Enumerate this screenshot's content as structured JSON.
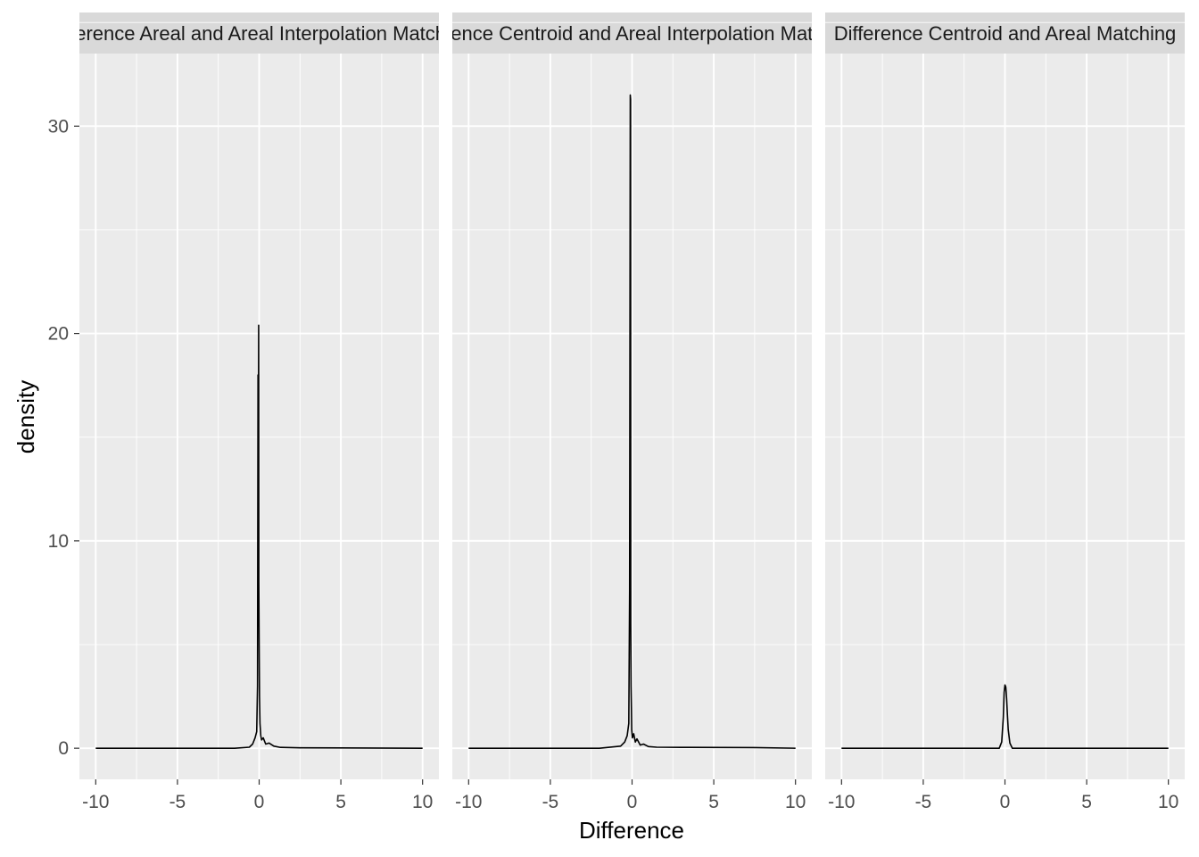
{
  "chart_data": {
    "type": "line",
    "subtype": "density (faceted)",
    "xlabel": "Difference",
    "ylabel": "density",
    "xlim": [
      -10,
      10
    ],
    "ylim": [
      -1.5,
      33.5
    ],
    "x_ticks": [
      "-10",
      "-5",
      "0",
      "5",
      "10"
    ],
    "y_ticks": [
      "0",
      "10",
      "20",
      "30"
    ],
    "grid": true,
    "colors": {
      "panel_bg": "#ebebeb",
      "strip_bg": "#d9d9d9",
      "grid": "#ffffff",
      "line": "#000000"
    },
    "panels": [
      {
        "strip_label": "Difference Areal and Areal Interpolation Matching",
        "x": [
          -10,
          -1.5,
          -0.6,
          -0.4,
          -0.25,
          -0.15,
          -0.1,
          -0.07,
          -0.05,
          -0.03,
          -0.02,
          0,
          0.02,
          0.05,
          0.1,
          0.15,
          0.25,
          0.4,
          0.6,
          0.9,
          1.3,
          2.5,
          10
        ],
        "y": [
          0,
          0,
          0.05,
          0.2,
          0.5,
          0.8,
          3,
          18,
          12,
          20.4,
          8,
          5,
          2.5,
          1.2,
          0.6,
          0.4,
          0.5,
          0.2,
          0.25,
          0.1,
          0.04,
          0.02,
          0
        ]
      },
      {
        "strip_label": "Difference Centroid and Areal Interpolation Matching",
        "x": [
          -10,
          -2,
          -0.7,
          -0.45,
          -0.3,
          -0.2,
          -0.15,
          -0.11,
          -0.09,
          -0.08,
          -0.06,
          -0.04,
          -0.02,
          0.02,
          0.1,
          0.2,
          0.3,
          0.5,
          0.7,
          1,
          1.5,
          3.5,
          7.5,
          10
        ],
        "y": [
          0,
          0,
          0.1,
          0.3,
          0.6,
          1.2,
          7.6,
          31.5,
          31.3,
          6,
          3,
          2,
          0.9,
          0.5,
          0.7,
          0.3,
          0.45,
          0.15,
          0.2,
          0.08,
          0.05,
          0.04,
          0.03,
          0
        ]
      },
      {
        "strip_label": "Difference Centroid and Areal Matching",
        "x": [
          -10,
          -0.35,
          -0.2,
          -0.1,
          -0.05,
          0,
          0.05,
          0.1,
          0.15,
          0.2,
          0.3,
          0.45,
          10
        ],
        "y": [
          0,
          0,
          0.3,
          1.5,
          2.7,
          3.05,
          2.95,
          2.4,
          1.6,
          0.9,
          0.25,
          0,
          0
        ]
      }
    ]
  }
}
